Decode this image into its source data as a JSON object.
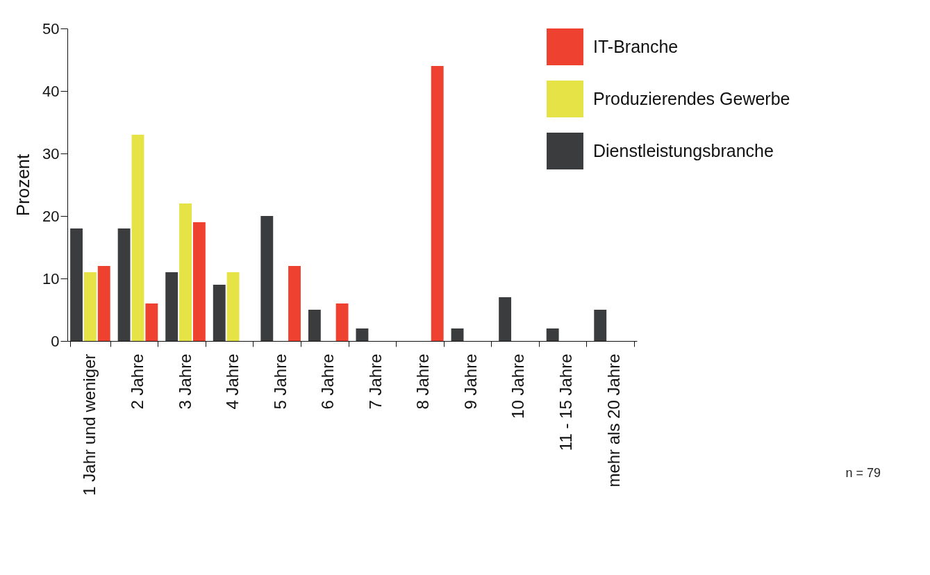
{
  "chart_data": {
    "type": "bar",
    "ylabel": "Prozent",
    "categories": [
      "1 Jahr und weniger",
      "2 Jahre",
      "3 Jahre",
      "4 Jahre",
      "5 Jahre",
      "6 Jahre",
      "7 Jahre",
      "8 Jahre",
      "9 Jahre",
      "10 Jahre",
      "11 - 15 Jahre",
      "mehr als 20 Jahre"
    ],
    "series": [
      {
        "name": "Dienstleistungsbranche",
        "color": "#3a3c3d",
        "values": [
          18,
          18,
          11,
          9,
          20,
          5,
          2,
          0,
          2,
          7,
          2,
          5
        ]
      },
      {
        "name": "Produzierendes Gewerbe",
        "color": "#e5e346",
        "values": [
          11,
          33,
          22,
          11,
          0,
          0,
          0,
          0,
          0,
          0,
          0,
          0
        ]
      },
      {
        "name": "IT-Branche",
        "color": "#ee4130",
        "values": [
          12,
          6,
          19,
          0,
          12,
          6,
          0,
          44,
          0,
          0,
          0,
          0
        ]
      }
    ],
    "ylim": [
      0,
      50
    ],
    "yticks": [
      0,
      10,
      20,
      30,
      40,
      50
    ],
    "grid": false,
    "legend": "top right",
    "annotations": [
      "n = 79"
    ]
  }
}
